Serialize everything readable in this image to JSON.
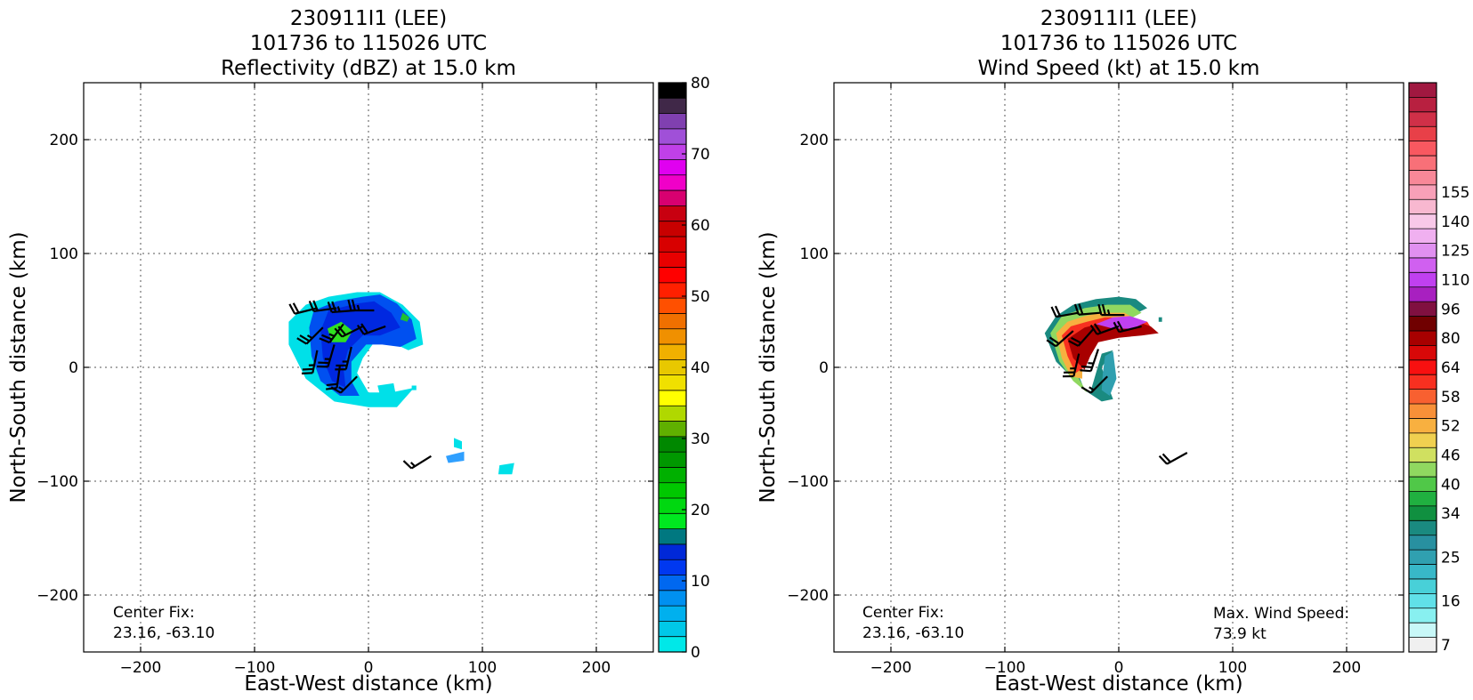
{
  "chart_data": [
    {
      "type": "heatmap",
      "id": "reflectivity",
      "title": [
        "230911I1 (LEE)",
        "101736 to 115026 UTC",
        "Reflectivity (dBZ) at 15.0 km"
      ],
      "xlabel": "East-West distance (km)",
      "ylabel": "North-South distance (km)",
      "xlim": [
        -250,
        250
      ],
      "ylim": [
        -250,
        250
      ],
      "xticks": [
        -200,
        -100,
        0,
        100,
        200
      ],
      "yticks": [
        -200,
        -100,
        0,
        100,
        200
      ],
      "xtick_labels": [
        "−200",
        "−100",
        "0",
        "100",
        "200"
      ],
      "ytick_labels": [
        "−200",
        "−100",
        "0",
        "100",
        "200"
      ],
      "grid": true,
      "annotation": [
        "Center Fix:",
        "23.16, -63.10"
      ],
      "annotation_position": "bottom-left",
      "colorbar": {
        "min": 0,
        "max": 80,
        "ticks": [
          0,
          10,
          20,
          30,
          40,
          50,
          60,
          70,
          80
        ],
        "colors": [
          "#00e8e8",
          "#00c8e8",
          "#00b0ee",
          "#0090f0",
          "#0068f0",
          "#0038f0",
          "#0028d8",
          "#007880",
          "#00e820",
          "#00d810",
          "#00c800",
          "#00b000",
          "#009800",
          "#008800",
          "#60b000",
          "#b0d800",
          "#ffff00",
          "#f0e000",
          "#e8c800",
          "#f0b000",
          "#f09000",
          "#f07000",
          "#ff5000",
          "#ff2000",
          "#ff0000",
          "#e80000",
          "#d80000",
          "#c80000",
          "#c80010",
          "#d80070",
          "#f000c8",
          "#e000f0",
          "#c040e8",
          "#a050d8",
          "#8040b0",
          "#402848",
          "#000000"
        ]
      },
      "echo_regions": [
        {
          "color": "#00e0e8",
          "points": [
            [
              -70,
              40
            ],
            [
              -55,
              55
            ],
            [
              -35,
              62
            ],
            [
              -10,
              66
            ],
            [
              10,
              66
            ],
            [
              30,
              55
            ],
            [
              45,
              40
            ],
            [
              48,
              20
            ],
            [
              35,
              15
            ],
            [
              20,
              22
            ],
            [
              5,
              22
            ],
            [
              -5,
              8
            ],
            [
              -10,
              -5
            ],
            [
              0,
              -22
            ],
            [
              20,
              -22
            ],
            [
              40,
              -18
            ],
            [
              25,
              -35
            ],
            [
              0,
              -35
            ],
            [
              -30,
              -30
            ],
            [
              -55,
              -10
            ],
            [
              -70,
              20
            ]
          ]
        },
        {
          "color": "#0050f0",
          "points": [
            [
              -48,
              50
            ],
            [
              -28,
              58
            ],
            [
              -5,
              62
            ],
            [
              10,
              64
            ],
            [
              25,
              56
            ],
            [
              38,
              42
            ],
            [
              42,
              25
            ],
            [
              28,
              18
            ],
            [
              12,
              20
            ],
            [
              -2,
              20
            ],
            [
              -15,
              5
            ],
            [
              -15,
              -12
            ],
            [
              -8,
              -25
            ],
            [
              -25,
              -25
            ],
            [
              -42,
              -12
            ],
            [
              -50,
              10
            ],
            [
              -52,
              35
            ]
          ]
        },
        {
          "color": "#0028e0",
          "points": [
            [
              -35,
              50
            ],
            [
              -10,
              56
            ],
            [
              5,
              58
            ],
            [
              20,
              48
            ],
            [
              28,
              35
            ],
            [
              10,
              28
            ],
            [
              -5,
              28
            ],
            [
              -18,
              15
            ],
            [
              -22,
              0
            ],
            [
              -20,
              -18
            ],
            [
              -32,
              -12
            ],
            [
              -40,
              8
            ],
            [
              -42,
              32
            ]
          ]
        },
        {
          "color": "#30e020",
          "points": [
            [
              -36,
              34
            ],
            [
              -24,
              40
            ],
            [
              -14,
              32
            ],
            [
              -20,
              22
            ],
            [
              -32,
              22
            ]
          ]
        },
        {
          "color": "#20c030",
          "points": [
            [
              30,
              48
            ],
            [
              36,
              44
            ],
            [
              34,
              40
            ],
            [
              28,
              42
            ]
          ]
        },
        {
          "color": "#00e0e8",
          "points": [
            [
              75,
              -62
            ],
            [
              82,
              -65
            ],
            [
              82,
              -72
            ],
            [
              75,
              -70
            ]
          ]
        },
        {
          "color": "#30a0ff",
          "points": [
            [
              68,
              -78
            ],
            [
              84,
              -74
            ],
            [
              84,
              -82
            ],
            [
              70,
              -84
            ]
          ]
        },
        {
          "color": "#00e0e8",
          "points": [
            [
              115,
              -86
            ],
            [
              128,
              -84
            ],
            [
              126,
              -94
            ],
            [
              114,
              -94
            ]
          ]
        },
        {
          "color": "#00e0e8",
          "points": [
            [
              8,
              -16
            ],
            [
              22,
              -14
            ],
            [
              24,
              -24
            ],
            [
              10,
              -24
            ]
          ]
        },
        {
          "color": "#00e0e8",
          "points": [
            [
              38,
              -16
            ],
            [
              42,
              -16
            ],
            [
              42,
              -20
            ],
            [
              38,
              -20
            ]
          ]
        }
      ],
      "wind_barbs": [
        {
          "x": -45,
          "y": 52,
          "u": 20,
          "v": 5
        },
        {
          "x": -28,
          "y": 52,
          "u": 22,
          "v": 3
        },
        {
          "x": -12,
          "y": 50,
          "u": 25,
          "v": 2
        },
        {
          "x": 5,
          "y": 50,
          "u": 25,
          "v": 0
        },
        {
          "x": -40,
          "y": 35,
          "u": 18,
          "v": 18
        },
        {
          "x": -22,
          "y": 38,
          "u": 15,
          "v": 20
        },
        {
          "x": -5,
          "y": 36,
          "u": 20,
          "v": 10
        },
        {
          "x": 15,
          "y": 36,
          "u": 22,
          "v": 8
        },
        {
          "x": -45,
          "y": 15,
          "u": 5,
          "v": 25
        },
        {
          "x": -30,
          "y": 20,
          "u": 8,
          "v": 28
        },
        {
          "x": -15,
          "y": 18,
          "u": 6,
          "v": 25
        },
        {
          "x": -25,
          "y": 2,
          "u": 3,
          "v": 22
        },
        {
          "x": -10,
          "y": -8,
          "u": 12,
          "v": 12
        },
        {
          "x": 55,
          "y": -78,
          "u": 16,
          "v": 10
        }
      ]
    },
    {
      "type": "heatmap",
      "id": "wind_speed",
      "title": [
        "230911I1 (LEE)",
        "101736 to 115026 UTC",
        "Wind Speed (kt) at 15.0 km"
      ],
      "xlabel": "East-West distance (km)",
      "ylabel": "North-South distance (km)",
      "xlim": [
        -250,
        250
      ],
      "ylim": [
        -250,
        250
      ],
      "xticks": [
        -200,
        -100,
        0,
        100,
        200
      ],
      "yticks": [
        -200,
        -100,
        0,
        100,
        200
      ],
      "xtick_labels": [
        "−200",
        "−100",
        "0",
        "100",
        "200"
      ],
      "ytick_labels": [
        "−200",
        "−100",
        "0",
        "100",
        "200"
      ],
      "grid": true,
      "annotation": [
        "Center Fix:",
        "23.16, -63.10"
      ],
      "annotation_position": "bottom-left",
      "annotation2": [
        "Max. Wind Speed:",
        "73.9 kt"
      ],
      "annotation2_position": "bottom-right",
      "colorbar": {
        "tick_labels": [
          "7",
          "16",
          "25",
          "34",
          "40",
          "46",
          "52",
          "58",
          "64",
          "80",
          "96",
          "110",
          "125",
          "140",
          "155"
        ],
        "tick_indices": [
          0,
          3,
          6,
          9,
          11,
          13,
          15,
          17,
          19,
          21,
          23,
          25,
          27,
          29,
          31
        ],
        "colors": [
          "#f0f0f0",
          "#c8f8f8",
          "#88f0f0",
          "#60e0e8",
          "#48d0d8",
          "#38b8c8",
          "#30a0b0",
          "#2890a0",
          "#1a8a80",
          "#109040",
          "#20b040",
          "#50c848",
          "#90d860",
          "#d0e060",
          "#f0d050",
          "#f8b040",
          "#f89038",
          "#f86030",
          "#f83020",
          "#f81010",
          "#d80808",
          "#a80000",
          "#700000",
          "#801040",
          "#a820c0",
          "#c040f0",
          "#d060f0",
          "#e090f0",
          "#f0b0f0",
          "#f8c8e8",
          "#f8b8d0",
          "#f8a0b8",
          "#f88898",
          "#f87078",
          "#f85860",
          "#e84048",
          "#d03048",
          "#b82040",
          "#a01840"
        ]
      },
      "wind_regions": [
        {
          "color": "#1a8a80",
          "points": [
            [
              -65,
              30
            ],
            [
              -55,
              45
            ],
            [
              -40,
              55
            ],
            [
              -20,
              60
            ],
            [
              0,
              62
            ],
            [
              15,
              60
            ],
            [
              25,
              52
            ],
            [
              10,
              45
            ],
            [
              -10,
              45
            ],
            [
              -25,
              35
            ],
            [
              -35,
              20
            ],
            [
              -38,
              0
            ],
            [
              -30,
              -20
            ],
            [
              -15,
              -30
            ],
            [
              -5,
              -28
            ],
            [
              -10,
              -15
            ],
            [
              -15,
              0
            ],
            [
              -5,
              15
            ],
            [
              -15,
              12
            ],
            [
              -20,
              -5
            ],
            [
              -25,
              -22
            ],
            [
              -40,
              -10
            ],
            [
              -55,
              5
            ]
          ]
        },
        {
          "color": "#90d860",
          "points": [
            [
              -60,
              30
            ],
            [
              -50,
              45
            ],
            [
              -30,
              52
            ],
            [
              -10,
              55
            ],
            [
              10,
              55
            ],
            [
              20,
              48
            ],
            [
              5,
              40
            ],
            [
              -15,
              40
            ],
            [
              -28,
              28
            ],
            [
              -35,
              10
            ],
            [
              -35,
              -10
            ],
            [
              -28,
              -22
            ],
            [
              -40,
              -12
            ],
            [
              -52,
              5
            ]
          ]
        },
        {
          "color": "#f8b040",
          "points": [
            [
              -55,
              30
            ],
            [
              -45,
              40
            ],
            [
              -30,
              45
            ],
            [
              -15,
              48
            ],
            [
              5,
              48
            ],
            [
              15,
              42
            ],
            [
              0,
              35
            ],
            [
              -18,
              35
            ],
            [
              -30,
              22
            ],
            [
              -32,
              5
            ],
            [
              -32,
              -10
            ],
            [
              -42,
              -8
            ],
            [
              -50,
              8
            ]
          ]
        },
        {
          "color": "#f83020",
          "points": [
            [
              -50,
              28
            ],
            [
              -42,
              36
            ],
            [
              -28,
              40
            ],
            [
              -12,
              44
            ],
            [
              8,
              44
            ],
            [
              25,
              40
            ],
            [
              30,
              32
            ],
            [
              15,
              30
            ],
            [
              -5,
              30
            ],
            [
              -22,
              28
            ],
            [
              -28,
              15
            ],
            [
              -30,
              0
            ],
            [
              -38,
              -5
            ],
            [
              -45,
              10
            ]
          ]
        },
        {
          "color": "#a80000",
          "points": [
            [
              -45,
              25
            ],
            [
              -30,
              35
            ],
            [
              -10,
              40
            ],
            [
              10,
              42
            ],
            [
              28,
              36
            ],
            [
              35,
              30
            ],
            [
              20,
              28
            ],
            [
              0,
              26
            ],
            [
              -18,
              22
            ],
            [
              -25,
              10
            ],
            [
              -30,
              -2
            ],
            [
              -40,
              8
            ]
          ]
        },
        {
          "color": "#c040f0",
          "points": [
            [
              -20,
              38
            ],
            [
              -5,
              44
            ],
            [
              10,
              45
            ],
            [
              25,
              40
            ],
            [
              12,
              34
            ],
            [
              -5,
              34
            ]
          ]
        },
        {
          "color": "#30a0b0",
          "points": [
            [
              -12,
              10
            ],
            [
              -5,
              14
            ],
            [
              -2,
              -10
            ],
            [
              -8,
              -25
            ],
            [
              -15,
              -20
            ],
            [
              -14,
              -5
            ]
          ]
        },
        {
          "color": "#1a8a80",
          "points": [
            [
              35,
              44
            ],
            [
              38,
              44
            ],
            [
              38,
              40
            ],
            [
              35,
              40
            ]
          ]
        }
      ],
      "wind_barbs": [
        {
          "x": -35,
          "y": 48,
          "u": 22,
          "v": 4
        },
        {
          "x": -15,
          "y": 48,
          "u": 24,
          "v": 2
        },
        {
          "x": 5,
          "y": 46,
          "u": 26,
          "v": 0
        },
        {
          "x": -40,
          "y": 32,
          "u": 18,
          "v": 16
        },
        {
          "x": -22,
          "y": 34,
          "u": 16,
          "v": 18
        },
        {
          "x": 0,
          "y": 36,
          "u": 22,
          "v": 8
        },
        {
          "x": 20,
          "y": 36,
          "u": 24,
          "v": 6
        },
        {
          "x": -35,
          "y": 12,
          "u": 6,
          "v": 26
        },
        {
          "x": -18,
          "y": 16,
          "u": 8,
          "v": 24
        },
        {
          "x": -10,
          "y": -8,
          "u": 12,
          "v": 12
        },
        {
          "x": 60,
          "y": -75,
          "u": 18,
          "v": 10
        }
      ]
    }
  ]
}
